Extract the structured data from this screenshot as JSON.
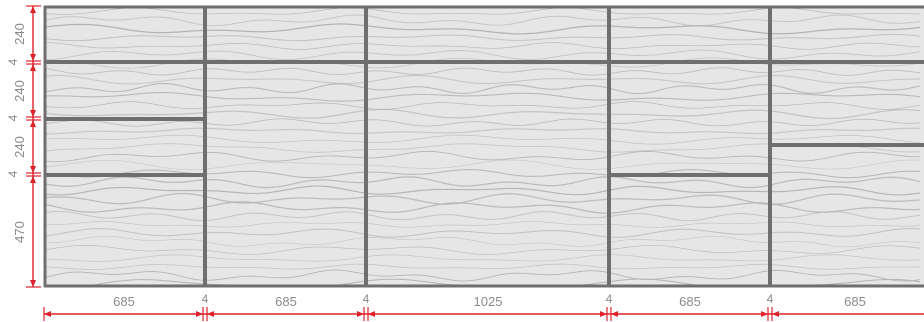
{
  "colors": {
    "panel_fill": "#e6e6e6",
    "frame": "#6f6f6f",
    "wave": "#b3b3b3",
    "dimension": "#e0202a",
    "label": "#8a8a8a"
  },
  "horizontal_dimensions": {
    "col1": "685",
    "gap1": "4",
    "col2": "685",
    "gap2": "4",
    "col3": "1025",
    "gap3": "4",
    "col4": "685",
    "gap4": "4",
    "col5": "685"
  },
  "vertical_dimensions": {
    "row1": "240",
    "gap1": "4",
    "row2": "240",
    "gap2": "4",
    "row3": "240",
    "gap3": "4",
    "row4": "470"
  }
}
